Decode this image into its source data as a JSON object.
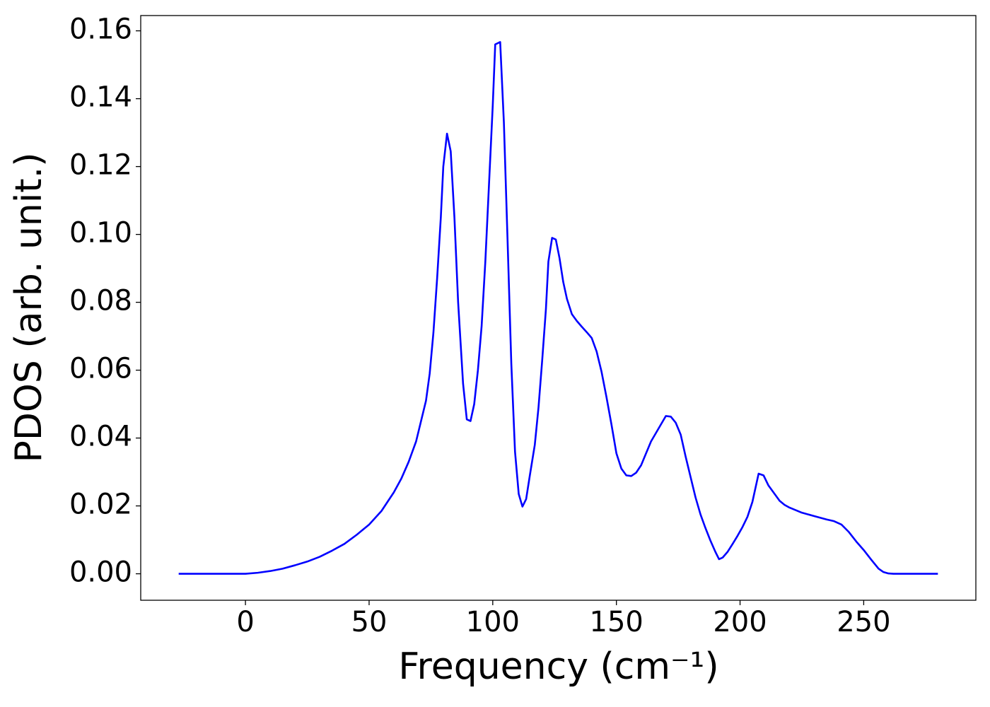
{
  "chart_data": {
    "type": "line",
    "x_label": "Frequency (cm⁻¹)",
    "y_label": "PDOS (arb. unit.)",
    "series": [
      {
        "color": "#0000ff",
        "x": [
          -27,
          -20,
          -10,
          0,
          5,
          10,
          15,
          20,
          25,
          30,
          35,
          40,
          45,
          50,
          55,
          60,
          63,
          66,
          69,
          71,
          73,
          74.5,
          76,
          77.5,
          79,
          80,
          81.5,
          83,
          84.5,
          86,
          88,
          89.5,
          91,
          92.5,
          94,
          95.5,
          97,
          98.5,
          100,
          101,
          103,
          104.5,
          106,
          107.5,
          109,
          110.5,
          112,
          113.5,
          115,
          117,
          118.5,
          120,
          121.5,
          122.5,
          124,
          125.5,
          127,
          128.5,
          130,
          132,
          134,
          136,
          138,
          140,
          142,
          144,
          146,
          148,
          150,
          152,
          154,
          156,
          158,
          160,
          162,
          164,
          166,
          168,
          170,
          172,
          174,
          176,
          178,
          180,
          182,
          184,
          186,
          188,
          190,
          191.5,
          193,
          195,
          197,
          199,
          201,
          203,
          205,
          207.5,
          209.5,
          211.5,
          214,
          216,
          218,
          220,
          225,
          230,
          235,
          238,
          241,
          244,
          247,
          250,
          253,
          256,
          258,
          260,
          262,
          270,
          280
        ],
        "values": [
          0,
          0,
          0,
          0,
          0.0003,
          0.0008,
          0.0015,
          0.0025,
          0.0036,
          0.005,
          0.0068,
          0.0088,
          0.0115,
          0.0145,
          0.0185,
          0.024,
          0.028,
          0.033,
          0.039,
          0.045,
          0.051,
          0.059,
          0.071,
          0.087,
          0.105,
          0.12,
          0.1297,
          0.1245,
          0.105,
          0.08,
          0.056,
          0.0455,
          0.045,
          0.05,
          0.06,
          0.073,
          0.092,
          0.115,
          0.138,
          0.156,
          0.1567,
          0.133,
          0.098,
          0.062,
          0.036,
          0.0235,
          0.0198,
          0.022,
          0.029,
          0.038,
          0.049,
          0.063,
          0.078,
          0.092,
          0.099,
          0.0985,
          0.093,
          0.086,
          0.081,
          0.0765,
          0.0745,
          0.0728,
          0.0712,
          0.0695,
          0.0655,
          0.0595,
          0.052,
          0.044,
          0.0355,
          0.031,
          0.029,
          0.0288,
          0.0298,
          0.032,
          0.0355,
          0.039,
          0.0415,
          0.044,
          0.0465,
          0.0463,
          0.0445,
          0.041,
          0.0345,
          0.0285,
          0.0225,
          0.0175,
          0.0135,
          0.0098,
          0.0065,
          0.0043,
          0.0048,
          0.0065,
          0.0088,
          0.0112,
          0.0138,
          0.0168,
          0.0212,
          0.0295,
          0.029,
          0.026,
          0.0235,
          0.0215,
          0.0203,
          0.0195,
          0.018,
          0.017,
          0.016,
          0.0155,
          0.0145,
          0.0123,
          0.0095,
          0.007,
          0.0042,
          0.0015,
          0.0005,
          0.0001,
          0,
          0,
          0
        ]
      }
    ],
    "xlim": [
      -42.35,
      295.35
    ],
    "ylim": [
      -0.0078,
      0.1645
    ],
    "xticks": [
      0,
      50,
      100,
      150,
      200,
      250
    ],
    "yticks": [
      {
        "value": 0,
        "label": "0.00"
      },
      {
        "value": 0.02,
        "label": "0.02"
      },
      {
        "value": 0.04,
        "label": "0.04"
      },
      {
        "value": 0.06,
        "label": "0.06"
      },
      {
        "value": 0.08,
        "label": "0.08"
      },
      {
        "value": 0.1,
        "label": "0.10"
      },
      {
        "value": 0.12,
        "label": "0.12"
      },
      {
        "value": 0.14,
        "label": "0.14"
      },
      {
        "value": 0.16,
        "label": "0.16"
      }
    ]
  }
}
